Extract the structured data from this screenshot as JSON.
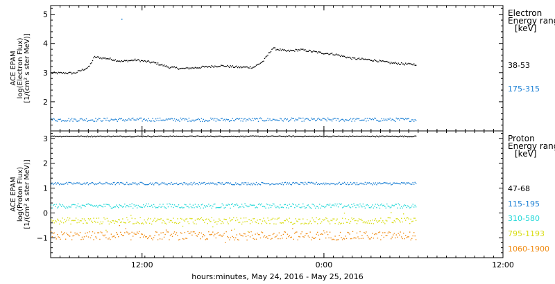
{
  "chart_data": [
    {
      "type": "scatter",
      "panel": "electron",
      "ylabel": [
        "ACE EPAM",
        "log(Electron Flux)",
        "[1/(cm² s ster MeV)]"
      ],
      "ylim": [
        1.0,
        5.3
      ],
      "yticks": [
        2,
        3,
        4,
        5
      ],
      "x_domain_hours": [
        0,
        48
      ],
      "legend": {
        "title": [
          "Electron",
          "Energy ranges",
          "[keV]"
        ],
        "items": [
          {
            "label": "38-53",
            "color": "#000000"
          },
          {
            "label": "175-315",
            "color": "#1a7fd4"
          }
        ]
      },
      "series": [
        {
          "name": "38-53",
          "color": "#000000",
          "profile": [
            [
              0.0,
              3.0
            ],
            [
              2.5,
              3.0
            ],
            [
              4.0,
              3.2
            ],
            [
              4.6,
              3.55
            ],
            [
              6.0,
              3.5
            ],
            [
              7.5,
              3.4
            ],
            [
              9.0,
              3.45
            ],
            [
              11.0,
              3.35
            ],
            [
              12.5,
              3.2
            ],
            [
              14.0,
              3.15
            ],
            [
              16.0,
              3.2
            ],
            [
              18.0,
              3.25
            ],
            [
              20.0,
              3.2
            ],
            [
              21.5,
              3.2
            ],
            [
              22.5,
              3.4
            ],
            [
              23.5,
              3.85
            ],
            [
              25.0,
              3.75
            ],
            [
              26.5,
              3.8
            ],
            [
              28.5,
              3.7
            ],
            [
              30.0,
              3.65
            ],
            [
              32.0,
              3.5
            ],
            [
              34.0,
              3.45
            ],
            [
              36.0,
              3.35
            ],
            [
              38.0,
              3.3
            ],
            [
              38.8,
              3.3
            ]
          ],
          "outliers": [
            [
              7.5,
              4.85
            ]
          ]
        },
        {
          "name": "175-315",
          "color": "#1a7fd4",
          "profile": [
            [
              0.0,
              1.4
            ],
            [
              38.8,
              1.4
            ]
          ]
        }
      ]
    },
    {
      "type": "scatter",
      "panel": "proton",
      "ylabel": [
        "ACE EPAM",
        "log(Proton Flux)",
        "[1/(cm² s ster MeV)]"
      ],
      "ylim": [
        -1.8,
        3.3
      ],
      "yticks": [
        -1,
        0,
        1,
        2,
        3
      ],
      "x_domain_hours": [
        0,
        48
      ],
      "xticks_hours": [
        9.7,
        29.0,
        48.0
      ],
      "xticklabels": [
        "12:00",
        "0:00",
        "12:00"
      ],
      "xlabel": "hours:minutes, May 24, 2016 - May 25, 2016",
      "legend": {
        "title": [
          "Proton",
          "Energy ranges",
          "[keV]"
        ],
        "items": [
          {
            "label": "47-68",
            "color": "#000000"
          },
          {
            "label": "115-195",
            "color": "#1a7fd4"
          },
          {
            "label": "310-580",
            "color": "#22d8d8"
          },
          {
            "label": "795-1193",
            "color": "#d8dc10"
          },
          {
            "label": "1060-1900",
            "color": "#f08a10"
          }
        ]
      },
      "series": [
        {
          "name": "47-68",
          "color": "#000000",
          "profile": [
            [
              0.0,
              3.1
            ],
            [
              38.8,
              3.1
            ]
          ]
        },
        {
          "name": "115-195",
          "color": "#1a7fd4",
          "profile": [
            [
              0.0,
              1.2
            ],
            [
              38.8,
              1.2
            ]
          ]
        },
        {
          "name": "310-580",
          "color": "#22d8d8",
          "profile": [
            [
              0.0,
              0.3
            ],
            [
              38.8,
              0.3
            ]
          ]
        },
        {
          "name": "795-1193",
          "color": "#d8dc10",
          "profile": [
            [
              0.0,
              -0.3
            ],
            [
              38.8,
              -0.3
            ]
          ]
        },
        {
          "name": "1060-1900",
          "color": "#f08a10",
          "profile": [
            [
              0.0,
              -0.9
            ],
            [
              38.8,
              -0.9
            ]
          ]
        }
      ]
    }
  ]
}
